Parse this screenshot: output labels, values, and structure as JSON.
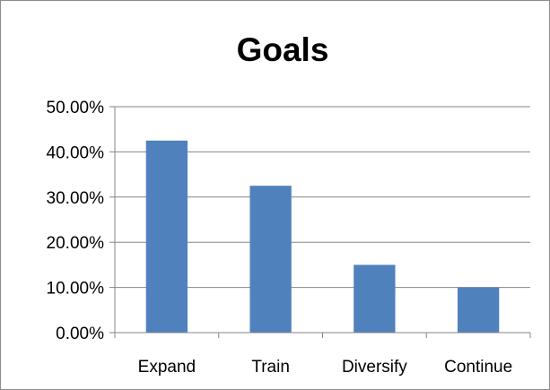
{
  "chart_data": {
    "type": "bar",
    "title": "Goals",
    "xlabel": "",
    "ylabel": "",
    "categories": [
      "Expand",
      "Train",
      "Diversify",
      "Continue"
    ],
    "values": [
      42.5,
      32.5,
      15.0,
      10.0
    ],
    "ylim": [
      0,
      50
    ],
    "yticks": [
      0,
      10,
      20,
      30,
      40,
      50
    ],
    "ytick_labels": [
      "0.00%",
      "10.00%",
      "20.00%",
      "30.00%",
      "40.00%",
      "50.00%"
    ],
    "grid": true,
    "legend": "none",
    "bar_color": "#4f81bd",
    "grid_color": "#868686"
  }
}
